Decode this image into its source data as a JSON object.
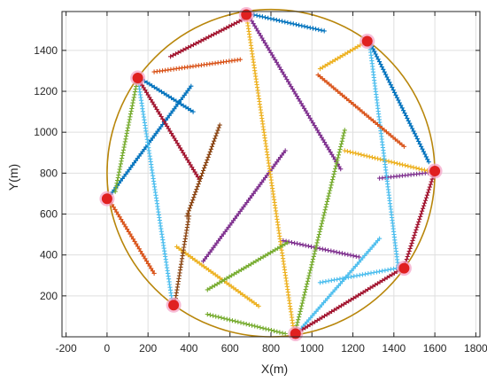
{
  "chart_data": {
    "type": "scatter",
    "title": "",
    "xlabel": "X(m)",
    "ylabel": "Y(m)",
    "xlim": [
      -220,
      1820
    ],
    "ylim": [
      0,
      1590
    ],
    "xticks": [
      -200,
      0,
      200,
      400,
      600,
      800,
      1000,
      1200,
      1400,
      1600,
      1800
    ],
    "yticks": [
      200,
      400,
      600,
      800,
      1000,
      1200,
      1400
    ],
    "grid": true,
    "boundary_circle": {
      "center": [
        800,
        800
      ],
      "radius": 800,
      "color": "#b8860b"
    },
    "stations": {
      "color": "#e02020",
      "halo_color": "#f4a6c8",
      "points": [
        [
          680,
          1575
        ],
        [
          1270,
          1445
        ],
        [
          150,
          1265
        ],
        [
          1600,
          810
        ],
        [
          0,
          675
        ],
        [
          1450,
          335
        ],
        [
          325,
          155
        ],
        [
          920,
          15
        ]
      ]
    },
    "series": [
      {
        "color": "#0072bd",
        "x": [
          690,
          1060
        ],
        "y": [
          1580,
          1495
        ]
      },
      {
        "color": "#0072bd",
        "x": [
          160,
          420
        ],
        "y": [
          1265,
          1100
        ]
      },
      {
        "color": "#0072bd",
        "x": [
          10,
          410
        ],
        "y": [
          685,
          1225
        ]
      },
      {
        "color": "#0072bd",
        "x": [
          1280,
          1570
        ],
        "y": [
          1445,
          855
        ]
      },
      {
        "color": "#7e2f8e",
        "x": [
          700,
          1140
        ],
        "y": [
          1555,
          820
        ]
      },
      {
        "color": "#7e2f8e",
        "x": [
          470,
          870
        ],
        "y": [
          370,
          910
        ]
      },
      {
        "color": "#7e2f8e",
        "x": [
          860,
          1230
        ],
        "y": [
          470,
          390
        ]
      },
      {
        "color": "#7e2f8e",
        "x": [
          1330,
          1595
        ],
        "y": [
          775,
          805
        ]
      },
      {
        "color": "#edb120",
        "x": [
          680,
          910
        ],
        "y": [
          1575,
          40
        ]
      },
      {
        "color": "#edb120",
        "x": [
          1040,
          1260
        ],
        "y": [
          1310,
          1440
        ]
      },
      {
        "color": "#edb120",
        "x": [
          340,
          740
        ],
        "y": [
          440,
          150
        ]
      },
      {
        "color": "#edb120",
        "x": [
          1160,
          1590
        ],
        "y": [
          910,
          805
        ]
      },
      {
        "color": "#4dbeee",
        "x": [
          1280,
          1420
        ],
        "y": [
          1445,
          350
        ]
      },
      {
        "color": "#4dbeee",
        "x": [
          150,
          320
        ],
        "y": [
          1265,
          160
        ]
      },
      {
        "color": "#4dbeee",
        "x": [
          930,
          1330
        ],
        "y": [
          20,
          480
        ]
      },
      {
        "color": "#4dbeee",
        "x": [
          1040,
          1440
        ],
        "y": [
          265,
          340
        ]
      },
      {
        "color": "#77ac30",
        "x": [
          40,
          150
        ],
        "y": [
          710,
          1265
        ]
      },
      {
        "color": "#77ac30",
        "x": [
          490,
          880
        ],
        "y": [
          230,
          460
        ]
      },
      {
        "color": "#77ac30",
        "x": [
          920,
          1160
        ],
        "y": [
          30,
          1010
        ]
      },
      {
        "color": "#77ac30",
        "x": [
          490,
          870
        ],
        "y": [
          110,
          15
        ]
      },
      {
        "color": "#d95319",
        "x": [
          230,
          650
        ],
        "y": [
          1295,
          1355
        ]
      },
      {
        "color": "#d95319",
        "x": [
          1030,
          1450
        ],
        "y": [
          1280,
          930
        ]
      },
      {
        "color": "#d95319",
        "x": [
          10,
          230
        ],
        "y": [
          670,
          310
        ]
      },
      {
        "color": "#a2142f",
        "x": [
          310,
          670
        ],
        "y": [
          1370,
          1555
        ]
      },
      {
        "color": "#a2142f",
        "x": [
          150,
          450
        ],
        "y": [
          1265,
          770
        ]
      },
      {
        "color": "#a2142f",
        "x": [
          1450,
          1600
        ],
        "y": [
          340,
          810
        ]
      },
      {
        "color": "#a2142f",
        "x": [
          920,
          1450
        ],
        "y": [
          15,
          340
        ]
      },
      {
        "color": "#8b4513",
        "x": [
          390,
          550
        ],
        "y": [
          590,
          1035
        ]
      },
      {
        "color": "#8b4513",
        "x": [
          330,
          400
        ],
        "y": [
          160,
          590
        ]
      }
    ]
  }
}
